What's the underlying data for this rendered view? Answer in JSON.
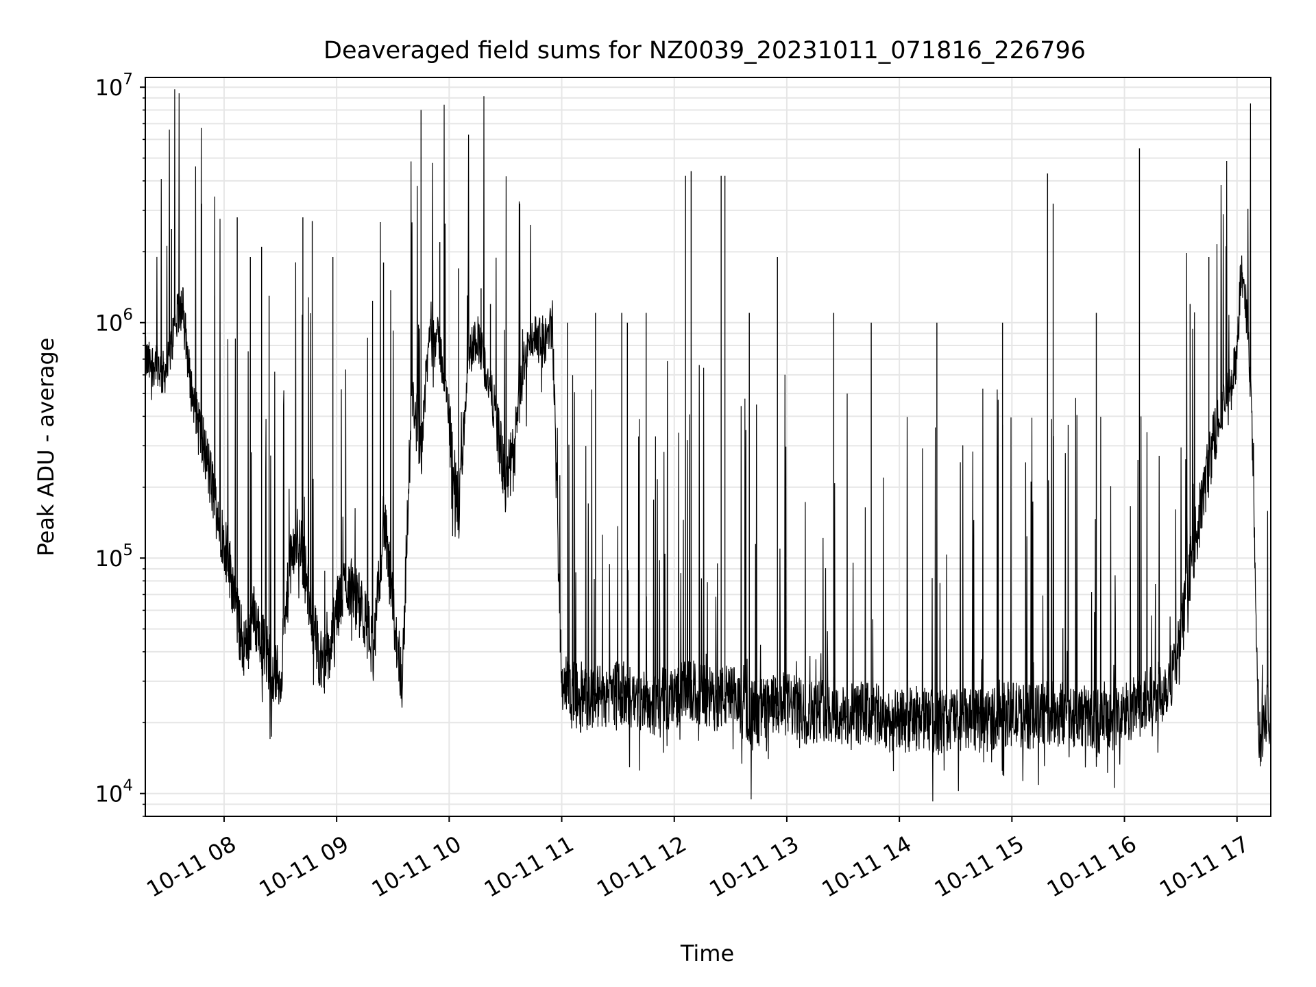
{
  "chart_data": {
    "type": "line",
    "title": "Deaveraged field sums for NZ0039_20231011_071816_226796",
    "xlabel": "Time",
    "ylabel": "Peak ADU - average",
    "yscale": "log",
    "ylim": [
      8000,
      11000000
    ],
    "xlim": [
      "2023-10-11 07:18",
      "2023-10-11 17:18"
    ],
    "grid": "on (major and minor, light grey)",
    "line_color": "#000000",
    "x_ticks": [
      {
        "value": "2023-10-11 08:00",
        "label": "10-11 08"
      },
      {
        "value": "2023-10-11 09:00",
        "label": "10-11 09"
      },
      {
        "value": "2023-10-11 10:00",
        "label": "10-11 10"
      },
      {
        "value": "2023-10-11 11:00",
        "label": "10-11 11"
      },
      {
        "value": "2023-10-11 12:00",
        "label": "10-11 12"
      },
      {
        "value": "2023-10-11 13:00",
        "label": "10-11 13"
      },
      {
        "value": "2023-10-11 14:00",
        "label": "10-11 14"
      },
      {
        "value": "2023-10-11 15:00",
        "label": "10-11 15"
      },
      {
        "value": "2023-10-11 16:00",
        "label": "10-11 16"
      },
      {
        "value": "2023-10-11 17:00",
        "label": "10-11 17"
      }
    ],
    "y_ticks": [
      {
        "value": 10000,
        "base": "10",
        "exp": "4"
      },
      {
        "value": 100000,
        "base": "10",
        "exp": "5"
      },
      {
        "value": 1000000,
        "base": "10",
        "exp": "6"
      },
      {
        "value": 10000000,
        "base": "10",
        "exp": "7"
      }
    ],
    "series": [
      {
        "x": [
          "2023-10-11 07:18",
          "2023-10-11 07:21",
          "2023-10-11 07:24",
          "2023-10-11 07:27",
          "2023-10-11 07:30",
          "2023-10-11 07:33",
          "2023-10-11 07:36",
          "2023-10-11 07:38",
          "2023-10-11 07:40",
          "2023-10-11 07:42",
          "2023-10-11 07:45",
          "2023-10-11 07:48",
          "2023-10-11 07:50",
          "2023-10-11 07:52",
          "2023-10-11 07:55",
          "2023-10-11 07:58",
          "2023-10-11 08:02",
          "2023-10-11 08:05",
          "2023-10-11 08:08",
          "2023-10-11 08:12",
          "2023-10-11 08:15",
          "2023-10-11 08:20",
          "2023-10-11 08:25",
          "2023-10-11 08:30",
          "2023-10-11 08:35",
          "2023-10-11 08:40",
          "2023-10-11 08:45",
          "2023-10-11 08:50",
          "2023-10-11 08:55",
          "2023-10-11 09:00",
          "2023-10-11 09:05",
          "2023-10-11 09:10",
          "2023-10-11 09:15",
          "2023-10-11 09:20",
          "2023-10-11 09:25",
          "2023-10-11 09:30",
          "2023-10-11 09:35",
          "2023-10-11 09:40",
          "2023-10-11 09:45",
          "2023-10-11 09:50",
          "2023-10-11 09:55",
          "2023-10-11 10:00",
          "2023-10-11 10:05",
          "2023-10-11 10:10",
          "2023-10-11 10:15",
          "2023-10-11 10:20",
          "2023-10-11 10:25",
          "2023-10-11 10:30",
          "2023-10-11 10:35",
          "2023-10-11 10:40",
          "2023-10-11 10:45",
          "2023-10-11 10:50",
          "2023-10-11 10:55",
          "2023-10-11 11:00",
          "2023-10-11 11:10",
          "2023-10-11 11:20",
          "2023-10-11 11:30",
          "2023-10-11 11:40",
          "2023-10-11 11:50",
          "2023-10-11 12:00",
          "2023-10-11 12:10",
          "2023-10-11 12:20",
          "2023-10-11 12:30",
          "2023-10-11 12:40",
          "2023-10-11 12:50",
          "2023-10-11 13:00",
          "2023-10-11 13:10",
          "2023-10-11 13:20",
          "2023-10-11 13:30",
          "2023-10-11 13:40",
          "2023-10-11 13:50",
          "2023-10-11 14:00",
          "2023-10-11 14:10",
          "2023-10-11 14:20",
          "2023-10-11 14:30",
          "2023-10-11 14:40",
          "2023-10-11 14:50",
          "2023-10-11 15:00",
          "2023-10-11 15:10",
          "2023-10-11 15:20",
          "2023-10-11 15:30",
          "2023-10-11 15:40",
          "2023-10-11 15:50",
          "2023-10-11 16:00",
          "2023-10-11 16:10",
          "2023-10-11 16:20",
          "2023-10-11 16:25",
          "2023-10-11 16:30",
          "2023-10-11 16:35",
          "2023-10-11 16:40",
          "2023-10-11 16:45",
          "2023-10-11 16:50",
          "2023-10-11 16:55",
          "2023-10-11 17:00",
          "2023-10-11 17:02",
          "2023-10-11 17:04",
          "2023-10-11 17:06",
          "2023-10-11 17:08",
          "2023-10-11 17:10",
          "2023-10-11 17:12",
          "2023-10-11 17:14",
          "2023-10-11 17:16",
          "2023-10-11 17:18"
        ],
        "values": [
          700000,
          650000,
          700000,
          600000,
          650000,
          900000,
          1100000,
          1200000,
          800000,
          550000,
          420000,
          320000,
          280000,
          230000,
          180000,
          140000,
          100000,
          75000,
          50000,
          40000,
          60000,
          45000,
          35000,
          30000,
          90000,
          130000,
          70000,
          40000,
          35000,
          60000,
          80000,
          70000,
          55000,
          40000,
          150000,
          60000,
          30000,
          500000,
          300000,
          1000000,
          800000,
          400000,
          150000,
          700000,
          900000,
          600000,
          400000,
          200000,
          300000,
          700000,
          900000,
          800000,
          1000000,
          30000,
          25000,
          26000,
          27000,
          25000,
          24000,
          26000,
          27000,
          25000,
          26000,
          22000,
          23000,
          24000,
          22000,
          23000,
          21000,
          22000,
          21000,
          20000,
          21000,
          20000,
          21000,
          20000,
          21000,
          22000,
          21000,
          22000,
          22000,
          21000,
          20000,
          22000,
          24000,
          27000,
          32000,
          45000,
          90000,
          150000,
          250000,
          400000,
          500000,
          700000,
          1600000,
          1400000,
          900000,
          400000,
          50000,
          16000,
          19000,
          24000,
          20000
        ]
      }
    ],
    "spikes": {
      "x": [
        "2023-10-11 07:32",
        "2023-10-11 07:48",
        "2023-10-11 07:55",
        "2023-10-11 08:07",
        "2023-10-11 08:14",
        "2023-10-11 08:20",
        "2023-10-11 08:24",
        "2023-10-11 08:42",
        "2023-10-11 08:47",
        "2023-10-11 08:58",
        "2023-10-11 09:25",
        "2023-10-11 09:40",
        "2023-10-11 09:45",
        "2023-10-11 09:55",
        "2023-10-11 10:05",
        "2023-10-11 10:17",
        "2023-10-11 10:22",
        "2023-10-11 11:03",
        "2023-10-11 11:18",
        "2023-10-11 11:32",
        "2023-10-11 11:35",
        "2023-10-11 11:45",
        "2023-10-11 12:06",
        "2023-10-11 12:09",
        "2023-10-11 12:25",
        "2023-10-11 12:27",
        "2023-10-11 12:40",
        "2023-10-11 12:55",
        "2023-10-11 13:25",
        "2023-10-11 13:45",
        "2023-10-11 14:20",
        "2023-10-11 14:55",
        "2023-10-11 15:19",
        "2023-10-11 15:22",
        "2023-10-11 15:45",
        "2023-10-11 16:08",
        "2023-10-11 16:35",
        "2023-10-11 16:45"
      ],
      "values": [
        2500000,
        3200000,
        1300000,
        2800000,
        1900000,
        2100000,
        1300000,
        2800000,
        2700000,
        1900000,
        1800000,
        2000000,
        8000000,
        2200000,
        1700000,
        1400000,
        1200000,
        1000000,
        1100000,
        1100000,
        1000000,
        1100000,
        4200000,
        4400000,
        4200000,
        4200000,
        1100000,
        1900000,
        1100000,
        1000000,
        1000000,
        1000000,
        4300000,
        3200000,
        1100000,
        5500000,
        1200000,
        1900000
      ]
    }
  }
}
